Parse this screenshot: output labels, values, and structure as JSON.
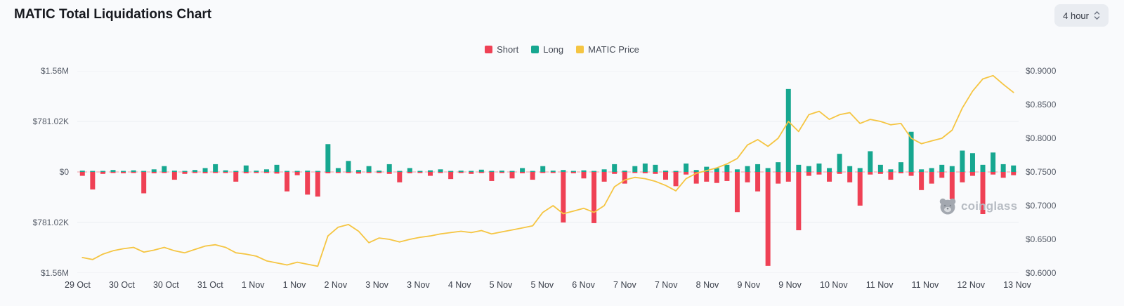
{
  "header": {
    "title": "MATIC Total Liquidations Chart",
    "interval": "4 hour"
  },
  "legend": [
    {
      "label": "Short",
      "color": "#ef4155"
    },
    {
      "label": "Long",
      "color": "#17a790"
    },
    {
      "label": "MATIC Price",
      "color": "#f5c542"
    }
  ],
  "watermark": "coinglass",
  "colors": {
    "short": "#ef4155",
    "long": "#17a790",
    "price": "#f5c542",
    "grid": "#eceef2",
    "zero_line": "#f29aa4",
    "background": "#f9fafc"
  },
  "chart_data": {
    "type": "bar",
    "subtype": "bidirectional-bars-with-line-overlay",
    "title": "MATIC Total Liquidations Chart",
    "interval": "4 hour",
    "unit": "thousand USD",
    "y_left": {
      "labels": [
        "$1.56M",
        "$781.02K",
        "$0",
        "$781.02K",
        "$1.56M"
      ],
      "max_thousand": 1560,
      "zero_centered": true
    },
    "y_right": {
      "labels": [
        "$0.9000",
        "$0.8500",
        "$0.8000",
        "$0.7500",
        "$0.7000",
        "$0.6500",
        "$0.6000"
      ],
      "min": 0.6,
      "max": 0.9
    },
    "x_labels": [
      "29 Oct",
      "30 Oct",
      "30 Oct",
      "31 Oct",
      "1 Nov",
      "1 Nov",
      "2 Nov",
      "3 Nov",
      "3 Nov",
      "4 Nov",
      "5 Nov",
      "5 Nov",
      "6 Nov",
      "7 Nov",
      "7 Nov",
      "8 Nov",
      "9 Nov",
      "9 Nov",
      "10 Nov",
      "11 Nov",
      "11 Nov",
      "12 Nov",
      "13 Nov"
    ],
    "grid": true,
    "legend_position": "top-center",
    "series": [
      {
        "name": "Short",
        "type": "bar",
        "direction": "down",
        "color": "#ef4155",
        "values": [
          60,
          270,
          30,
          10,
          20,
          15,
          330,
          20,
          15,
          120,
          30,
          10,
          20,
          15,
          10,
          150,
          20,
          15,
          10,
          25,
          300,
          50,
          350,
          380,
          20,
          15,
          10,
          25,
          15,
          10,
          30,
          160,
          20,
          15,
          60,
          10,
          110,
          15,
          30,
          10,
          140,
          15,
          100,
          20,
          120,
          10,
          15,
          780,
          20,
          100,
          790,
          150,
          30,
          180,
          15,
          20,
          30,
          120,
          220,
          40,
          180,
          150,
          170,
          140,
          620,
          160,
          300,
          1450,
          180,
          150,
          900,
          60,
          40,
          150,
          30,
          160,
          520,
          40,
          30,
          120,
          20,
          60,
          280,
          180,
          90,
          420,
          160,
          60,
          650,
          40,
          90,
          50
        ]
      },
      {
        "name": "Long",
        "type": "bar",
        "direction": "up",
        "color": "#17a790",
        "values": [
          20,
          5,
          15,
          30,
          10,
          25,
          10,
          40,
          90,
          20,
          15,
          30,
          60,
          120,
          25,
          15,
          100,
          20,
          40,
          110,
          15,
          10,
          20,
          15,
          430,
          60,
          170,
          30,
          90,
          20,
          120,
          15,
          60,
          10,
          25,
          40,
          15,
          20,
          10,
          35,
          15,
          20,
          10,
          60,
          15,
          90,
          20,
          30,
          10,
          25,
          15,
          40,
          120,
          20,
          90,
          130,
          110,
          20,
          15,
          130,
          30,
          80,
          60,
          110,
          40,
          90,
          120,
          60,
          150,
          1280,
          110,
          90,
          130,
          60,
          280,
          90,
          60,
          320,
          110,
          40,
          150,
          620,
          40,
          60,
          110,
          90,
          330,
          290,
          110,
          300,
          120,
          100
        ]
      },
      {
        "name": "MATIC Price",
        "type": "line",
        "color": "#f5c542",
        "values": [
          0.623,
          0.62,
          0.628,
          0.633,
          0.636,
          0.638,
          0.631,
          0.634,
          0.638,
          0.633,
          0.63,
          0.635,
          0.64,
          0.642,
          0.638,
          0.63,
          0.628,
          0.625,
          0.618,
          0.615,
          0.612,
          0.616,
          0.613,
          0.61,
          0.655,
          0.668,
          0.672,
          0.662,
          0.645,
          0.652,
          0.65,
          0.646,
          0.65,
          0.653,
          0.655,
          0.658,
          0.66,
          0.662,
          0.66,
          0.663,
          0.658,
          0.661,
          0.664,
          0.667,
          0.67,
          0.69,
          0.7,
          0.688,
          0.692,
          0.696,
          0.69,
          0.7,
          0.728,
          0.738,
          0.742,
          0.74,
          0.736,
          0.73,
          0.722,
          0.74,
          0.748,
          0.752,
          0.756,
          0.762,
          0.77,
          0.79,
          0.798,
          0.788,
          0.8,
          0.825,
          0.81,
          0.835,
          0.84,
          0.828,
          0.835,
          0.838,
          0.822,
          0.828,
          0.825,
          0.82,
          0.822,
          0.8,
          0.792,
          0.796,
          0.8,
          0.812,
          0.845,
          0.87,
          0.888,
          0.893,
          0.88,
          0.868
        ]
      }
    ]
  }
}
